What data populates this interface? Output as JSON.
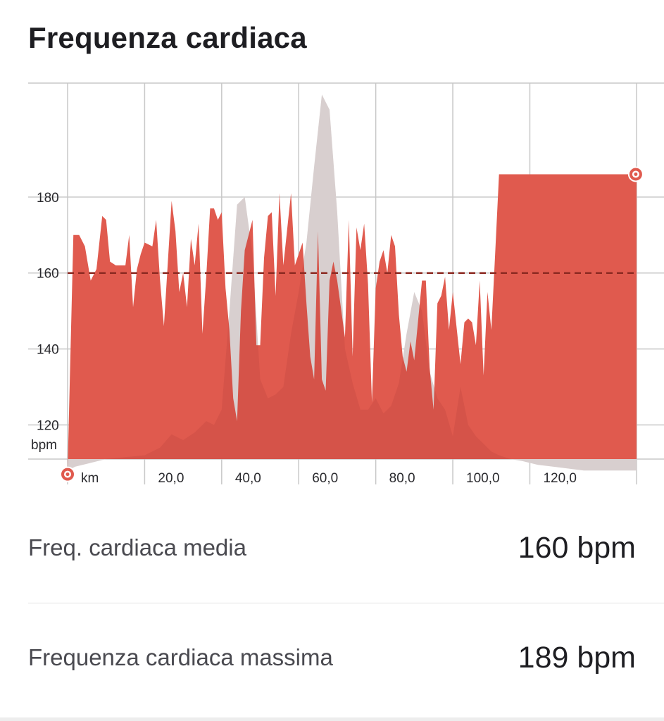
{
  "header": {
    "title": "Frequenza cardiaca"
  },
  "colors": {
    "hr_fill": "#e05a4e",
    "elevation_fill": "#e4e4e4",
    "avg_line": "#8c2a22",
    "grid": "#c8c8c8"
  },
  "chart_data": {
    "type": "area",
    "title": "Frequenza cardiaca",
    "xlabel": "km",
    "ylabel": "bpm",
    "xlim": [
      0,
      147.7
    ],
    "ylim": [
      111,
      210
    ],
    "x_ticks": [
      20,
      40,
      60,
      80,
      100,
      120
    ],
    "x_tick_labels": [
      "20,0",
      "40,0",
      "60,0",
      "80,0",
      "100,0",
      "120,0"
    ],
    "y_ticks": [
      120,
      140,
      160,
      180
    ],
    "y_tick_labels": [
      "120",
      "140",
      "160",
      "180"
    ],
    "grid": true,
    "legend": "none",
    "average_line": 160,
    "start_marker": {
      "x": 0,
      "y": 107
    },
    "end_marker": {
      "x": 147.5,
      "y": 186
    },
    "series": [
      {
        "key": "elevation",
        "x": [
          0,
          2,
          6,
          10,
          15,
          20,
          24,
          27,
          30,
          33,
          36,
          38,
          40,
          42,
          44,
          46,
          48,
          50,
          52,
          54,
          56,
          58,
          60,
          62,
          64,
          66,
          68,
          70,
          72,
          74,
          76,
          78,
          80,
          82,
          84,
          86,
          88,
          90,
          92,
          94,
          96,
          98,
          100,
          102,
          104,
          106,
          108,
          110,
          112,
          115,
          118,
          122,
          126,
          130,
          134,
          138,
          142,
          147.7
        ],
        "values": [
          108,
          109,
          110,
          111,
          111.5,
          112,
          114,
          117.5,
          116,
          118,
          121,
          120,
          124,
          150,
          178,
          180,
          165,
          132,
          127,
          128,
          130,
          144,
          155,
          168,
          188,
          207,
          203,
          176,
          140,
          131,
          124,
          124,
          127,
          123,
          125,
          131,
          144,
          155,
          150,
          134,
          127,
          124,
          117,
          130,
          120,
          117,
          115,
          113,
          112,
          111,
          110.5,
          109.5,
          109,
          108.5,
          108,
          108,
          108,
          108
        ]
      },
      {
        "key": "heart_rate",
        "x": [
          0,
          1.5,
          3,
          4.5,
          6,
          7.5,
          9,
          10,
          11,
          12.5,
          14,
          15,
          16,
          17,
          18,
          19,
          20,
          22,
          23,
          24,
          25,
          27,
          28,
          29,
          30,
          31,
          32,
          33,
          34,
          35,
          36,
          37,
          38,
          39,
          40,
          41,
          42,
          43,
          44,
          45,
          46,
          48,
          49,
          50,
          51,
          52,
          53,
          54,
          55,
          56,
          58,
          59,
          60,
          61,
          62,
          63,
          64,
          65,
          66,
          67,
          68,
          69,
          70,
          72,
          73,
          74,
          75,
          76,
          77,
          78,
          79,
          80,
          81,
          82,
          83,
          84,
          85,
          86,
          87,
          88,
          89,
          90,
          92,
          93,
          94,
          95,
          96,
          97,
          98,
          99,
          100,
          102,
          103,
          104,
          105,
          106,
          107,
          108,
          109,
          110,
          111,
          112,
          113,
          114,
          115,
          116,
          118,
          119,
          120,
          121,
          122,
          123,
          124,
          125,
          126,
          128,
          129,
          130,
          131,
          132,
          133,
          135,
          136,
          137,
          138,
          139,
          140,
          141,
          142,
          143,
          144,
          145,
          146,
          147,
          147.7
        ],
        "values": [
          108,
          170,
          170,
          167,
          158,
          161,
          175,
          174,
          163,
          162,
          162,
          162,
          170,
          151,
          161,
          165,
          168,
          167,
          174,
          158,
          146,
          179,
          171,
          155,
          160,
          151,
          169,
          162,
          173,
          144,
          159,
          177,
          177,
          174,
          176,
          156,
          145,
          127,
          121,
          150,
          166,
          174,
          141,
          141,
          164,
          175,
          176,
          154,
          181,
          162,
          181,
          162,
          165,
          168,
          152,
          138,
          132,
          171,
          132,
          129,
          158,
          163,
          158,
          143,
          174,
          138,
          172,
          166,
          173,
          157,
          126,
          156,
          163,
          166,
          160,
          170,
          167,
          149,
          138,
          134,
          142,
          137,
          158,
          158,
          135,
          124,
          152,
          154,
          159,
          145,
          155,
          136,
          147,
          148,
          147,
          141,
          158,
          133,
          155,
          145,
          165,
          186,
          186,
          186,
          186,
          186,
          186,
          186,
          186,
          186,
          186,
          186,
          186,
          186,
          186,
          186,
          186,
          186,
          186,
          186,
          186,
          186,
          186,
          186,
          186,
          186,
          186,
          186,
          186,
          186,
          186,
          186,
          186,
          186,
          186
        ]
      }
    ]
  },
  "stats": {
    "avg_label": "Freq. cardiaca media",
    "avg_value": "160 bpm",
    "max_label": "Frequenza cardiaca massima",
    "max_value": "189 bpm"
  }
}
